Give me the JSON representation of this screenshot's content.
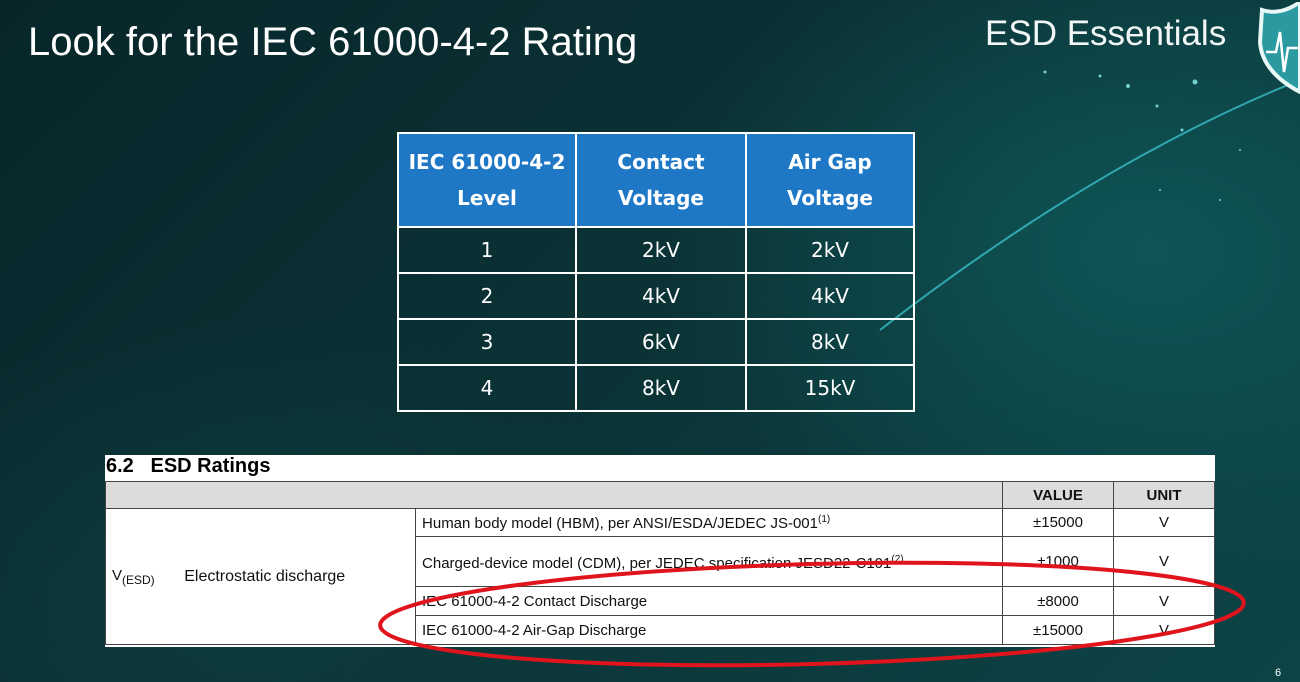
{
  "slide": {
    "title": "Look for the IEC 61000-4-2 Rating",
    "brand": "ESD Essentials",
    "page_number": "6",
    "brand_icon": "shield-heartbeat-icon"
  },
  "iec_table": {
    "headers": [
      "IEC 61000-4-2 Level",
      "Contact Voltage",
      "Air Gap Voltage"
    ],
    "rows": [
      [
        "1",
        "2kV",
        "2kV"
      ],
      [
        "2",
        "4kV",
        "4kV"
      ],
      [
        "3",
        "6kV",
        "8kV"
      ],
      [
        "4",
        "8kV",
        "15kV"
      ]
    ]
  },
  "datasheet": {
    "section": "6.2   ESD Ratings",
    "headers": {
      "value": "VALUE",
      "unit": "UNIT"
    },
    "symbol": "V",
    "symbol_sub": "(ESD)",
    "parameter": "Electrostatic discharge",
    "rows": [
      {
        "condition": "Human body model (HBM), per ANSI/ESDA/JEDEC JS-001",
        "note": "(1)",
        "value": "±15000",
        "unit": "V"
      },
      {
        "condition": "Charged-device model (CDM), per JEDEC specification JESD22-C101",
        "note": "(2)",
        "value": "±1000",
        "unit": "V"
      },
      {
        "condition": "IEC 61000-4-2 Contact Discharge",
        "note": "",
        "value": "±8000",
        "unit": "V"
      },
      {
        "condition": "IEC 61000-4-2 Air-Gap Discharge",
        "note": "",
        "value": "±15000",
        "unit": "V"
      }
    ],
    "highlight_color": "#e0141c"
  }
}
